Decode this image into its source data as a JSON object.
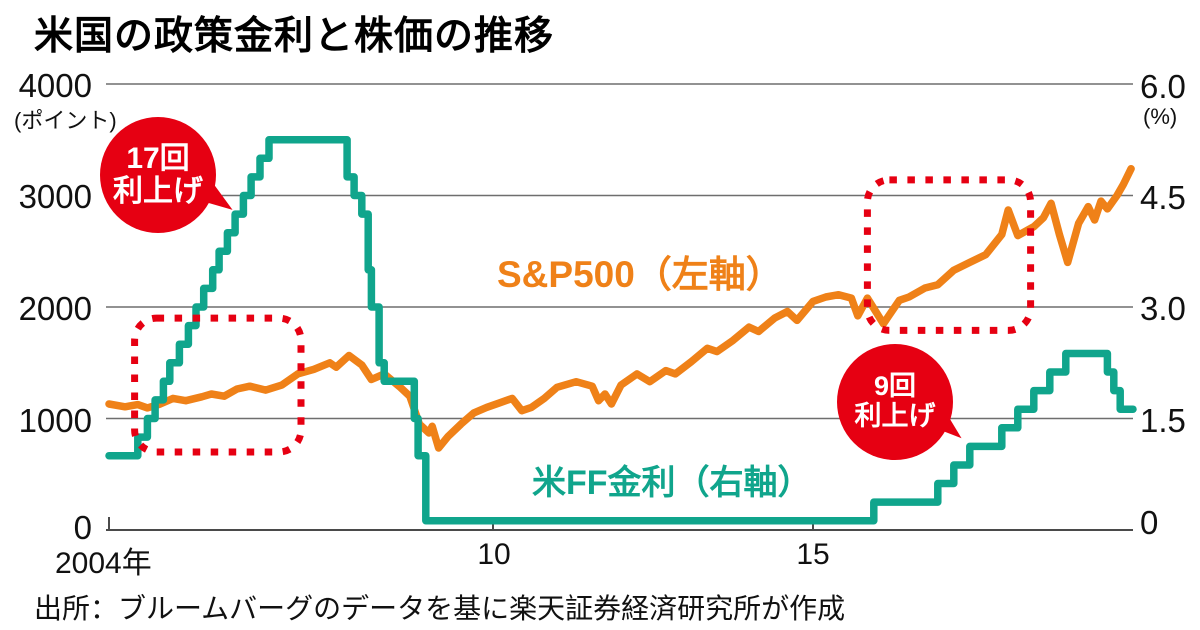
{
  "title": "米国の政策金利と株価の推移",
  "source": "出所：ブルームバーグのデータを基に楽天証券経済研究所が作成",
  "colors": {
    "sp500": "#ef8118",
    "ff_rate": "#10a58c",
    "annotation_red": "#e60012",
    "grid": "#6e6e6e",
    "text": "#111111"
  },
  "left_axis": {
    "unit": "(ポイント)",
    "ticks": [
      "4000",
      "3000",
      "2000",
      "1000",
      "0"
    ]
  },
  "right_axis": {
    "unit": "(%)",
    "ticks": [
      "6.0",
      "4.5",
      "3.0",
      "1.5",
      "0"
    ]
  },
  "x_axis": {
    "labels": [
      {
        "text": "2004年",
        "year": 2004
      },
      {
        "text": "10",
        "year": 2010
      },
      {
        "text": "15",
        "year": 2015
      }
    ]
  },
  "series_labels": {
    "sp500": "S&P500（左軸）",
    "ff_rate": "米FF金利（右軸）"
  },
  "annotations": {
    "bubbles": [
      {
        "line1": "17回",
        "line2": "利上げ"
      },
      {
        "line1": "9回",
        "line2": "利上げ"
      }
    ]
  },
  "chart_data": {
    "type": "line",
    "title": "米国の政策金利と株価の推移",
    "x_range": [
      2004,
      2020
    ],
    "grid": "horizontal",
    "legend_position": "inline-labels",
    "left_axis": {
      "label": "ポイント",
      "range": [
        0,
        4000
      ],
      "ticks": [
        0,
        1000,
        2000,
        3000,
        4000
      ]
    },
    "right_axis": {
      "label": "%",
      "range": [
        0,
        6
      ],
      "ticks": [
        0,
        1.5,
        3.0,
        4.5,
        6.0
      ]
    },
    "series": [
      {
        "name": "S&P500（左軸）",
        "axis": "left",
        "color": "#ef8118",
        "interpolation": "linear",
        "points": [
          [
            2004.0,
            1130
          ],
          [
            2004.25,
            1105
          ],
          [
            2004.45,
            1125
          ],
          [
            2004.6,
            1095
          ],
          [
            2004.8,
            1130
          ],
          [
            2005.0,
            1180
          ],
          [
            2005.2,
            1160
          ],
          [
            2005.45,
            1195
          ],
          [
            2005.6,
            1220
          ],
          [
            2005.8,
            1200
          ],
          [
            2006.0,
            1265
          ],
          [
            2006.2,
            1290
          ],
          [
            2006.45,
            1255
          ],
          [
            2006.7,
            1300
          ],
          [
            2006.95,
            1400
          ],
          [
            2007.2,
            1440
          ],
          [
            2007.45,
            1500
          ],
          [
            2007.55,
            1460
          ],
          [
            2007.75,
            1565
          ],
          [
            2007.95,
            1480
          ],
          [
            2008.1,
            1350
          ],
          [
            2008.3,
            1400
          ],
          [
            2008.55,
            1280
          ],
          [
            2008.7,
            1200
          ],
          [
            2008.85,
            950
          ],
          [
            2009.0,
            870
          ],
          [
            2009.05,
            930
          ],
          [
            2009.15,
            735
          ],
          [
            2009.3,
            840
          ],
          [
            2009.5,
            950
          ],
          [
            2009.7,
            1050
          ],
          [
            2009.9,
            1100
          ],
          [
            2010.1,
            1140
          ],
          [
            2010.3,
            1180
          ],
          [
            2010.45,
            1070
          ],
          [
            2010.6,
            1100
          ],
          [
            2010.8,
            1180
          ],
          [
            2011.0,
            1280
          ],
          [
            2011.3,
            1330
          ],
          [
            2011.55,
            1290
          ],
          [
            2011.65,
            1160
          ],
          [
            2011.75,
            1220
          ],
          [
            2011.85,
            1130
          ],
          [
            2012.0,
            1300
          ],
          [
            2012.25,
            1400
          ],
          [
            2012.45,
            1330
          ],
          [
            2012.7,
            1430
          ],
          [
            2012.85,
            1400
          ],
          [
            2013.1,
            1510
          ],
          [
            2013.35,
            1630
          ],
          [
            2013.5,
            1600
          ],
          [
            2013.75,
            1700
          ],
          [
            2014.0,
            1820
          ],
          [
            2014.15,
            1780
          ],
          [
            2014.4,
            1900
          ],
          [
            2014.6,
            1960
          ],
          [
            2014.75,
            1880
          ],
          [
            2015.0,
            2050
          ],
          [
            2015.2,
            2090
          ],
          [
            2015.4,
            2110
          ],
          [
            2015.6,
            2080
          ],
          [
            2015.7,
            1920
          ],
          [
            2015.85,
            2080
          ],
          [
            2016.1,
            1850
          ],
          [
            2016.35,
            2060
          ],
          [
            2016.5,
            2090
          ],
          [
            2016.75,
            2170
          ],
          [
            2016.95,
            2200
          ],
          [
            2017.2,
            2330
          ],
          [
            2017.45,
            2400
          ],
          [
            2017.7,
            2470
          ],
          [
            2017.95,
            2650
          ],
          [
            2018.05,
            2870
          ],
          [
            2018.2,
            2640
          ],
          [
            2018.45,
            2720
          ],
          [
            2018.6,
            2800
          ],
          [
            2018.72,
            2930
          ],
          [
            2018.85,
            2650
          ],
          [
            2018.98,
            2400
          ],
          [
            2019.15,
            2750
          ],
          [
            2019.3,
            2900
          ],
          [
            2019.4,
            2780
          ],
          [
            2019.5,
            2950
          ],
          [
            2019.6,
            2880
          ],
          [
            2019.75,
            3000
          ],
          [
            2019.85,
            3100
          ],
          [
            2019.97,
            3240
          ]
        ]
      },
      {
        "name": "米FF金利（右軸）",
        "axis": "right",
        "color": "#10a58c",
        "interpolation": "step-after",
        "points": [
          [
            2004.0,
            1.0
          ],
          [
            2004.45,
            1.25
          ],
          [
            2004.6,
            1.5
          ],
          [
            2004.72,
            1.75
          ],
          [
            2004.85,
            2.0
          ],
          [
            2004.95,
            2.25
          ],
          [
            2005.1,
            2.5
          ],
          [
            2005.24,
            2.75
          ],
          [
            2005.36,
            3.0
          ],
          [
            2005.48,
            3.25
          ],
          [
            2005.62,
            3.5
          ],
          [
            2005.72,
            3.75
          ],
          [
            2005.85,
            4.0
          ],
          [
            2005.97,
            4.25
          ],
          [
            2006.1,
            4.5
          ],
          [
            2006.22,
            4.75
          ],
          [
            2006.36,
            5.0
          ],
          [
            2006.5,
            5.25
          ],
          [
            2007.72,
            4.75
          ],
          [
            2007.83,
            4.5
          ],
          [
            2007.95,
            4.25
          ],
          [
            2008.05,
            3.5
          ],
          [
            2008.1,
            3.0
          ],
          [
            2008.22,
            2.25
          ],
          [
            2008.3,
            2.0
          ],
          [
            2008.77,
            1.5
          ],
          [
            2008.83,
            1.0
          ],
          [
            2008.95,
            0.125
          ],
          [
            2015.95,
            0.375
          ],
          [
            2016.95,
            0.625
          ],
          [
            2017.2,
            0.875
          ],
          [
            2017.45,
            1.125
          ],
          [
            2017.95,
            1.375
          ],
          [
            2018.2,
            1.625
          ],
          [
            2018.45,
            1.875
          ],
          [
            2018.7,
            2.125
          ],
          [
            2018.95,
            2.375
          ],
          [
            2019.6,
            2.125
          ],
          [
            2019.7,
            1.875
          ],
          [
            2019.8,
            1.625
          ]
        ]
      }
    ],
    "annotations": [
      {
        "type": "bubble",
        "text": "17回利上げ",
        "year": 2004.8,
        "value_left": 3190
      },
      {
        "type": "bubble",
        "text": "9回利上げ",
        "year": 2016.3,
        "value_right": 1.7
      },
      {
        "type": "box",
        "year_range": [
          2004.4,
          2007.0
        ],
        "value_range_left": [
          700,
          1900
        ]
      },
      {
        "type": "box",
        "year_range": [
          2015.85,
          2018.4
        ],
        "value_range_left": [
          1790,
          3140
        ]
      }
    ]
  }
}
